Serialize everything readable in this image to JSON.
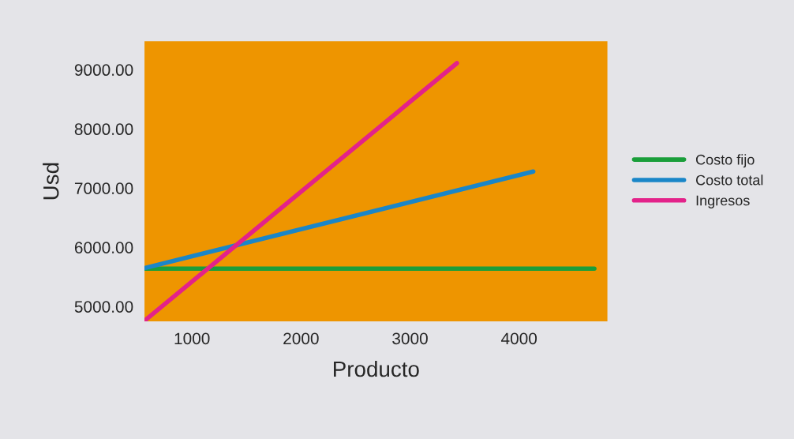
{
  "chart_data": {
    "type": "line",
    "xlabel": "Producto",
    "ylabel": "Usd",
    "xlim": [
      565,
      4810
    ],
    "ylim": [
      4750,
      9480
    ],
    "xticks": [
      1000,
      2000,
      3000,
      4000
    ],
    "yticks": [
      {
        "value": 5000,
        "label": "5000.00"
      },
      {
        "value": 6000,
        "label": "6000.00"
      },
      {
        "value": 7000,
        "label": "7000.00"
      },
      {
        "value": 8000,
        "label": "8000.00"
      },
      {
        "value": 9000,
        "label": "9000.00"
      }
    ],
    "series": [
      {
        "name": "Costo fijo",
        "color": "#1a9e3a",
        "x": [
          565,
          4690
        ],
        "values": [
          5640,
          5640
        ]
      },
      {
        "name": "Costo total",
        "color": "#1a86c8",
        "x": [
          565,
          4130
        ],
        "values": [
          5650,
          7280
        ]
      },
      {
        "name": "Ingresos",
        "color": "#e3228a",
        "x": [
          565,
          3430
        ],
        "values": [
          4760,
          9110
        ]
      }
    ],
    "legend": "right",
    "grid": false,
    "line_style": "solid",
    "marker": "none"
  }
}
